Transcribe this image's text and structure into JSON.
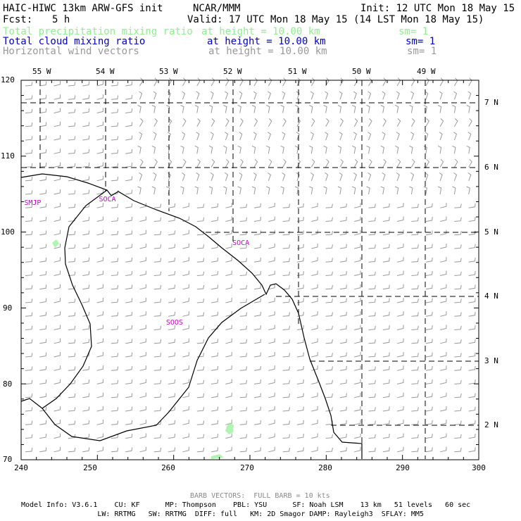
{
  "header": {
    "title": "HAIC-HIWC 13km ARW-GFS init",
    "org": "NCAR/MMM",
    "init": "Init: 12 UTC Mon 18 May 15",
    "fcst_label": "Fcst:",
    "fcst_value": "5 h",
    "valid": "Valid: 17 UTC Mon 18 May 15 (14 LST Mon 18 May 15)"
  },
  "fields": [
    {
      "name": "Total precipitation mixing ratio",
      "height": "at height = 10.00 km",
      "sm": "sm= 1",
      "color": "#90ee90"
    },
    {
      "name": "Total cloud mixing ratio",
      "height": "at height = 10.00 km",
      "sm": "sm= 1",
      "color": "#0000cd"
    },
    {
      "name": "Horizontal wind vectors",
      "height": "at height = 10.00 km",
      "sm": "sm= 1",
      "color": "#999999"
    }
  ],
  "map": {
    "bottom_ticks": [
      "240",
      "250",
      "260",
      "270",
      "280",
      "290",
      "300"
    ],
    "left_ticks": [
      "70",
      "80",
      "90",
      "100",
      "110",
      "120"
    ],
    "top_lon_labels": [
      "55 W",
      "54 W",
      "53 W",
      "52 W",
      "51 W",
      "50 W",
      "49 W"
    ],
    "right_lat_labels": [
      "2 N",
      "3 N",
      "4 N",
      "5 N",
      "6 N",
      "7 N"
    ],
    "stations": [
      {
        "label": "SMJP",
        "x": 240.4,
        "y": 103.8
      },
      {
        "label": "SOCA",
        "x": 250.2,
        "y": 104.2
      },
      {
        "label": "SOCA",
        "x": 267.7,
        "y": 98.5
      },
      {
        "label": "SOOS",
        "x": 259.0,
        "y": 88.0
      }
    ],
    "station_color": "#cc00cc",
    "coast_color": "#000000",
    "barb_color": "#999999"
  },
  "footer": {
    "barb_note": "BARB VECTORS:  FULL BARB = 10 kts",
    "model_info": [
      "Model Info: V3.6.1    CU: KF      MP: Thompson    PBL: YSU      SF: Noah LSM    13 km   51 levels   60 sec",
      "                  LW: RRTMG   SW: RRTMG  DIFF: full   KM: 2D Smagor DAMP: Rayleigh3  SFLAY: MM5"
    ]
  }
}
